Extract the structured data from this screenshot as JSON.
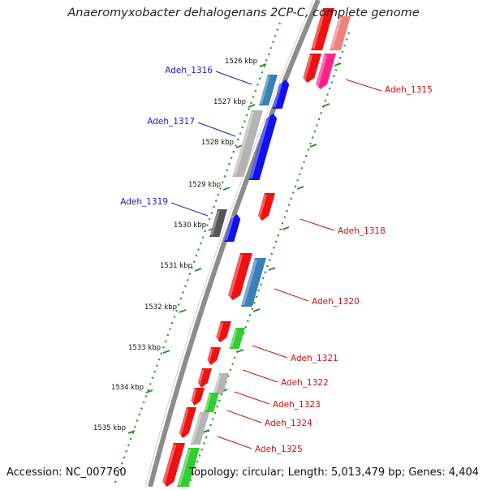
{
  "title": "Anaeromyxobacter dehalogenans 2CP-C, complete genome",
  "footer": {
    "accession_label": "Accession:",
    "accession": "NC_007760",
    "topology_label": "Topology:",
    "topology": "circular;",
    "length_label": "Length:",
    "length": "5,013,479 bp;",
    "genes_label": "Genes:",
    "genes": "4,404"
  },
  "colors": {
    "backbone": "#8c8c8c",
    "tick_green": "#2a8a2a",
    "forward_label": "#1a1acc",
    "reverse_label": "#cc1111",
    "cds_red": "#ee1111",
    "cds_blue": "#1111ee",
    "cds_steel": "#3a7fb5",
    "cds_grey": "#b4b4b4",
    "cds_darkgrey": "#555555",
    "cds_green": "#33cc33",
    "cds_pink": "#ff2288"
  },
  "ticks": [
    "1526 kbp",
    "1527 kbp",
    "1528 kbp",
    "1529 kbp",
    "1530 kbp",
    "1531 kbp",
    "1532 kbp",
    "1533 kbp",
    "1534 kbp",
    "1535 kbp"
  ],
  "gene_labels": {
    "left": [
      "Adeh_1316",
      "Adeh_1317",
      "Adeh_1319"
    ],
    "right": [
      "Adeh_1315",
      "Adeh_1318",
      "Adeh_1320",
      "Adeh_1321",
      "Adeh_1322",
      "Adeh_1323",
      "Adeh_1324",
      "Adeh_1325"
    ]
  }
}
